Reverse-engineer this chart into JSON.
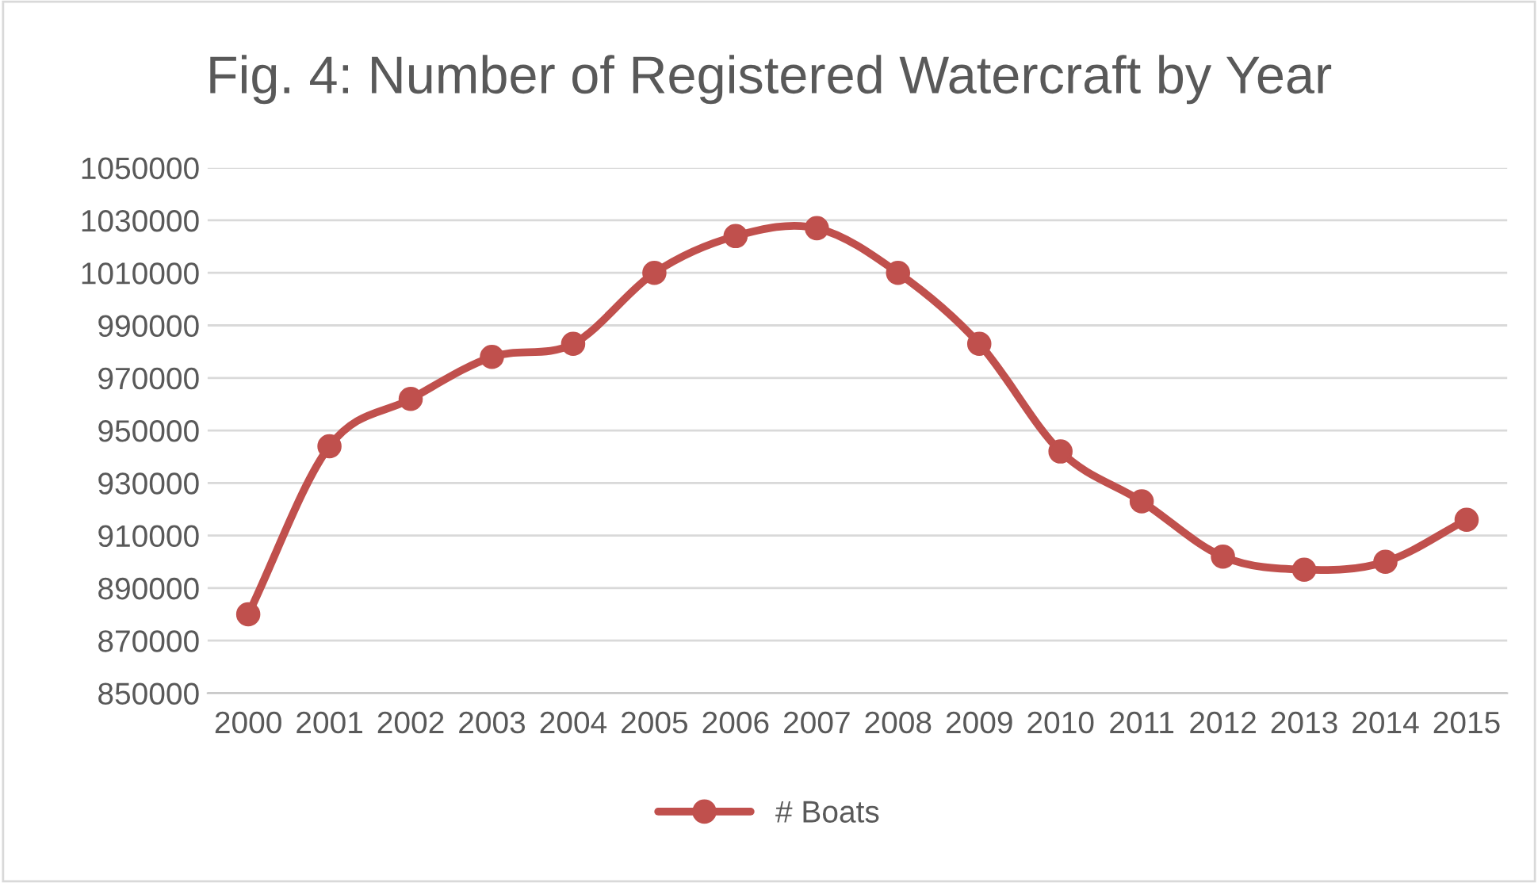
{
  "chart_data": {
    "type": "line",
    "title": "Fig. 4: Number of Registered Watercraft by Year",
    "categories": [
      "2000",
      "2001",
      "2002",
      "2003",
      "2004",
      "2005",
      "2006",
      "2007",
      "2008",
      "2009",
      "2010",
      "2011",
      "2012",
      "2013",
      "2014",
      "2015"
    ],
    "series": [
      {
        "name": "# Boats",
        "color": "#c0504d",
        "values": [
          880000,
          944000,
          962000,
          978000,
          983000,
          1010000,
          1024000,
          1027000,
          1010000,
          983000,
          942000,
          923000,
          902000,
          897000,
          900000,
          916000
        ]
      }
    ],
    "ylim": [
      850000,
      1050000
    ],
    "yticks": [
      850000,
      870000,
      890000,
      910000,
      930000,
      950000,
      970000,
      990000,
      1010000,
      1030000,
      1050000
    ],
    "grid": "y",
    "legend": "bottom",
    "marker": "circle",
    "line_style": "solid"
  }
}
